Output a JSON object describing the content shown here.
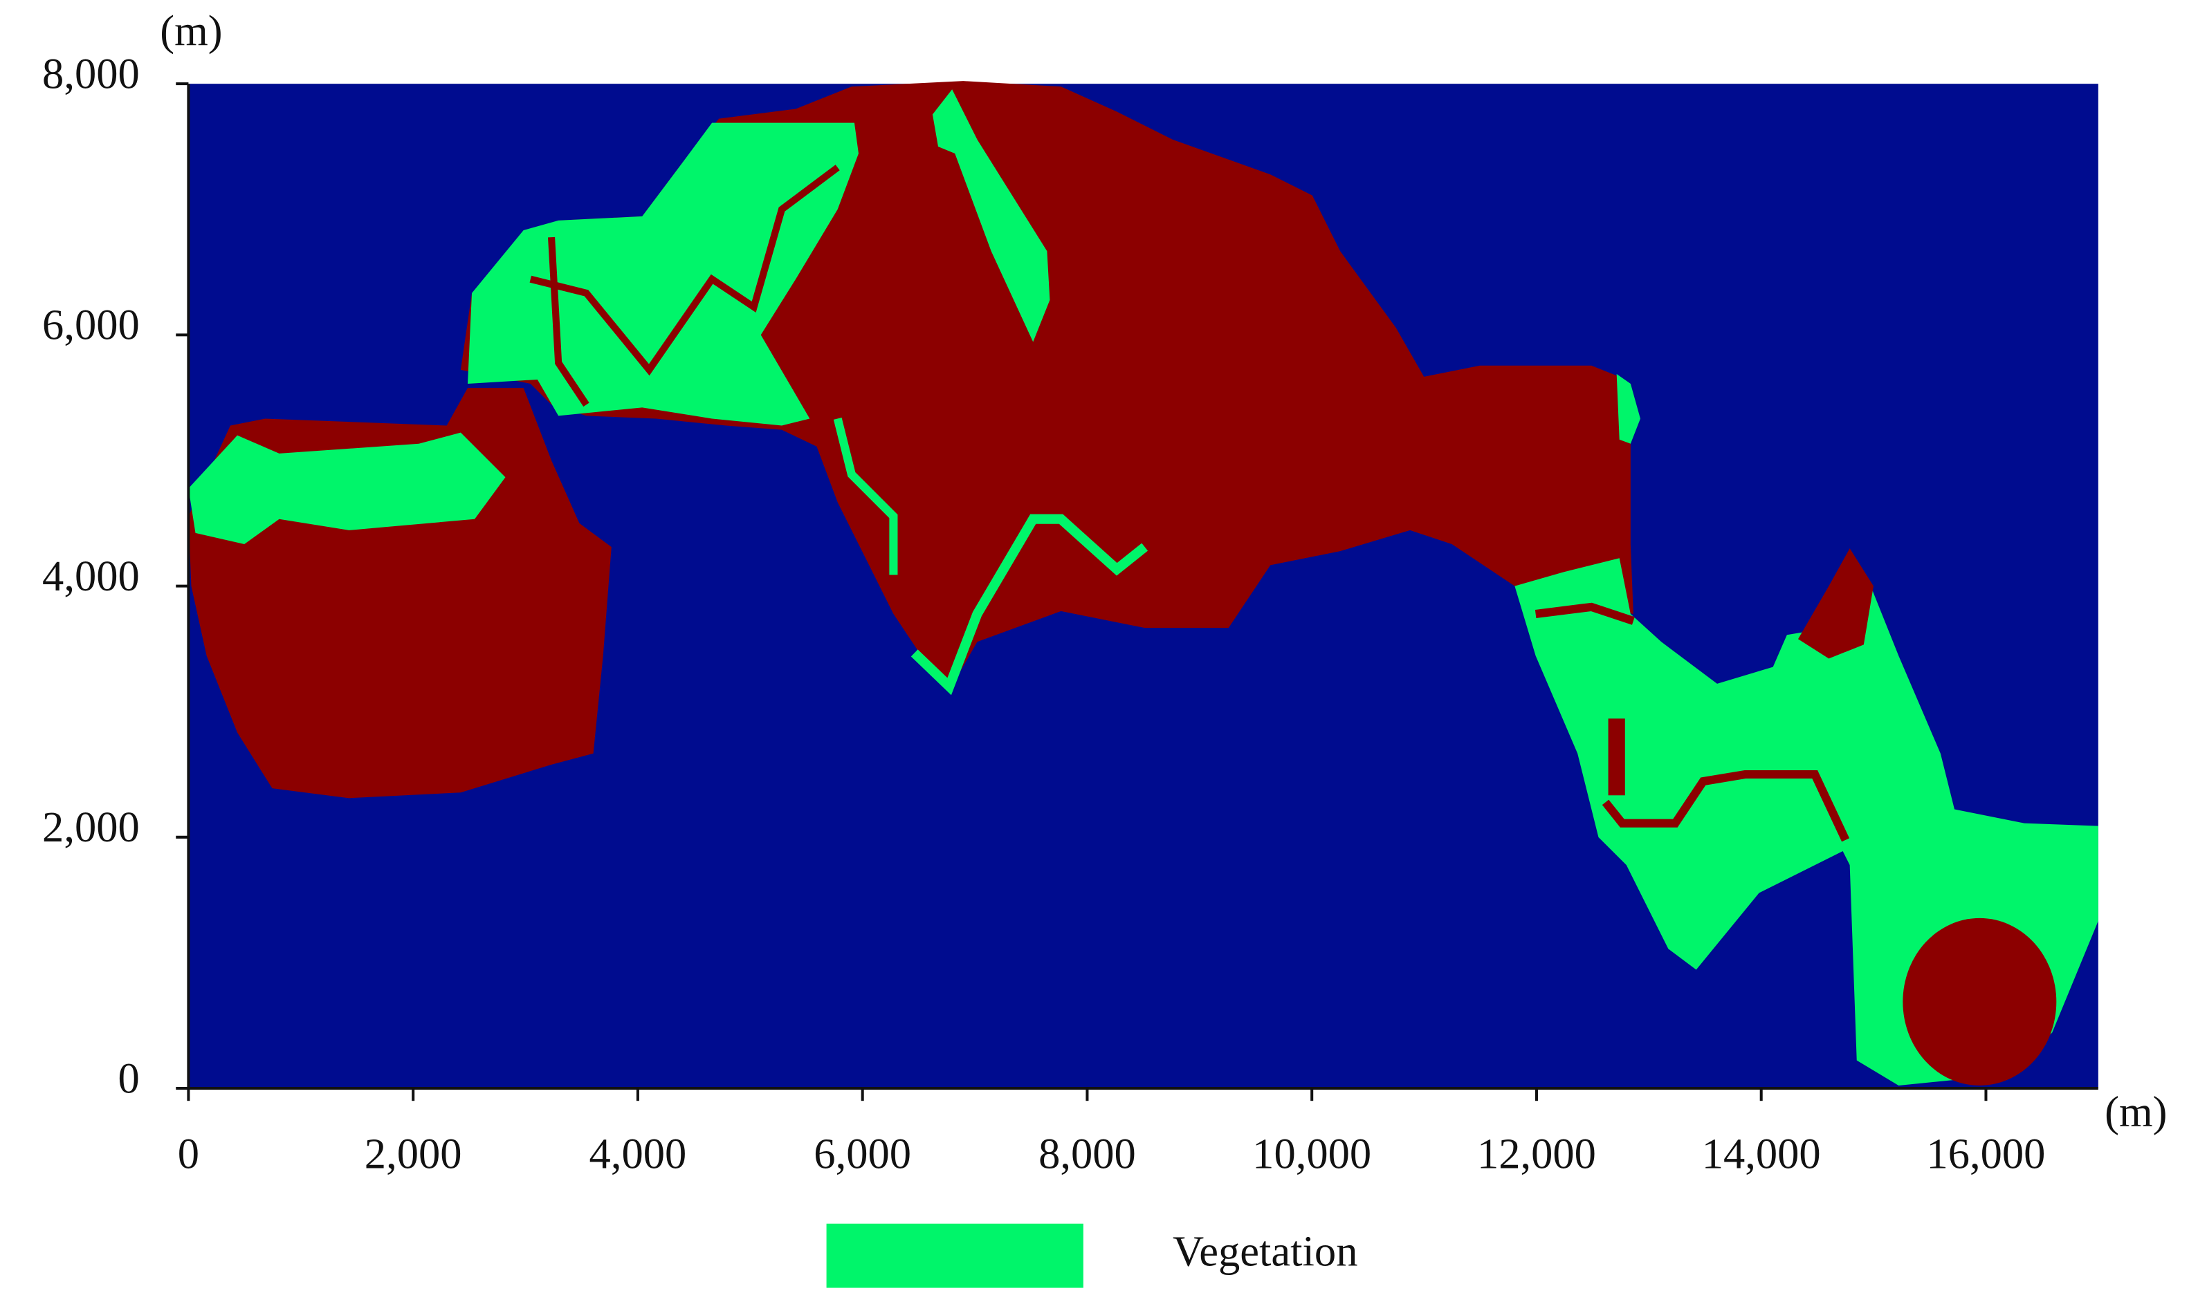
{
  "chart_data": {
    "type": "map",
    "x_unit": "(m)",
    "y_unit": "(m)",
    "xlim": [
      0,
      17000
    ],
    "ylim": [
      0,
      8000
    ],
    "xticks": [
      0,
      {
        "value": 2000,
        "label": "2,000"
      },
      {
        "value": 4000,
        "label": "4,000"
      },
      {
        "value": 6000,
        "label": "6,000"
      },
      {
        "value": 8000,
        "label": "8,000"
      },
      {
        "value": 10000,
        "label": "10,000"
      },
      {
        "value": 12000,
        "label": "12,000"
      },
      {
        "value": 14000,
        "label": "14,000"
      },
      {
        "value": 16000,
        "label": "16,000"
      }
    ],
    "yticks": [
      0,
      {
        "value": 2000,
        "label": "2,000"
      },
      {
        "value": 4000,
        "label": "4,000"
      },
      {
        "value": 6000,
        "label": "6,000"
      },
      {
        "value": 8000,
        "label": "8,000"
      }
    ],
    "legend": [
      {
        "name": "Vegetation",
        "color": "#00f56a"
      }
    ]
  }
}
